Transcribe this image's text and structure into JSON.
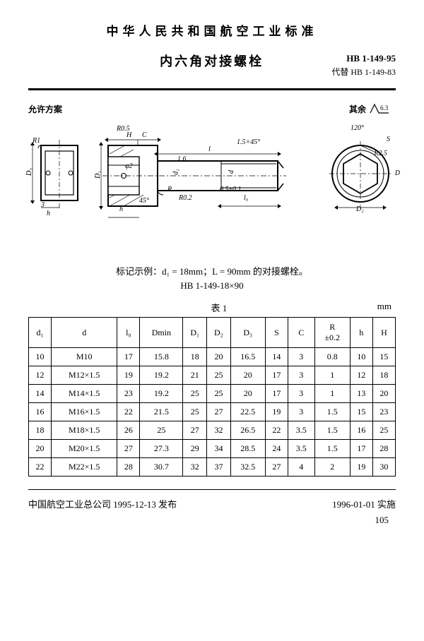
{
  "header": {
    "org_title": "中华人民共和国航空工业标准",
    "part_title": "内六角对接螺栓",
    "standard_code": "HB 1-149-95",
    "replaces": "代替 HB 1-149-83"
  },
  "drawing": {
    "allow_label": "允许方案",
    "extra_label": "其余",
    "roughness": "6.3",
    "dims": {
      "H": "H",
      "C": "C",
      "l": "l",
      "R05": "R0.5",
      "R1": "R1",
      "angle45": "45°",
      "chamfer": "1.5×45°",
      "angle120": "120°",
      "S": "S",
      "D": "D",
      "D1": "D₁",
      "D2": "D₂",
      "D3": "D₃",
      "h_small": "h",
      "r_small": "R",
      "r02": "R0.2",
      "l0": "l₀",
      "d_small": "d",
      "d1": "d₁",
      "phi2": "φ2",
      "b3": "3",
      "sixteen": "1.6",
      "rad05": "0.5±0.1",
      "rs": "R2.5"
    }
  },
  "example": {
    "line1": "标记示例：d₁ = 18mm；L = 90mm 的对接螺栓。",
    "line2": "HB 1-149-18×90"
  },
  "table": {
    "label": "表 1",
    "unit": "mm",
    "columns": [
      "d₁",
      "d",
      "l₀",
      "Dmin",
      "D₁",
      "D₂",
      "D₃",
      "S",
      "C",
      "R\n±0.2",
      "h",
      "H"
    ],
    "rows": [
      [
        "10",
        "M10",
        "17",
        "15.8",
        "18",
        "20",
        "16.5",
        "14",
        "3",
        "0.8",
        "10",
        "15"
      ],
      [
        "12",
        "M12×1.5",
        "19",
        "19.2",
        "21",
        "25",
        "20",
        "17",
        "3",
        "1",
        "12",
        "18"
      ],
      [
        "14",
        "M14×1.5",
        "23",
        "19.2",
        "25",
        "25",
        "20",
        "17",
        "3",
        "1",
        "13",
        "20"
      ],
      [
        "16",
        "M16×1.5",
        "22",
        "21.5",
        "25",
        "27",
        "22.5",
        "19",
        "3",
        "1.5",
        "15",
        "23"
      ],
      [
        "18",
        "M18×1.5",
        "26",
        "25",
        "27",
        "32",
        "26.5",
        "22",
        "3.5",
        "1.5",
        "16",
        "25"
      ],
      [
        "20",
        "M20×1.5",
        "27",
        "27.3",
        "29",
        "34",
        "28.5",
        "24",
        "3.5",
        "1.5",
        "17",
        "28"
      ],
      [
        "22",
        "M22×1.5",
        "28",
        "30.7",
        "32",
        "37",
        "32.5",
        "27",
        "4",
        "2",
        "19",
        "30"
      ]
    ]
  },
  "footer": {
    "left": "中国航空工业总公司 1995-12-13 发布",
    "right": "1996-01-01 实施",
    "page": "105"
  }
}
